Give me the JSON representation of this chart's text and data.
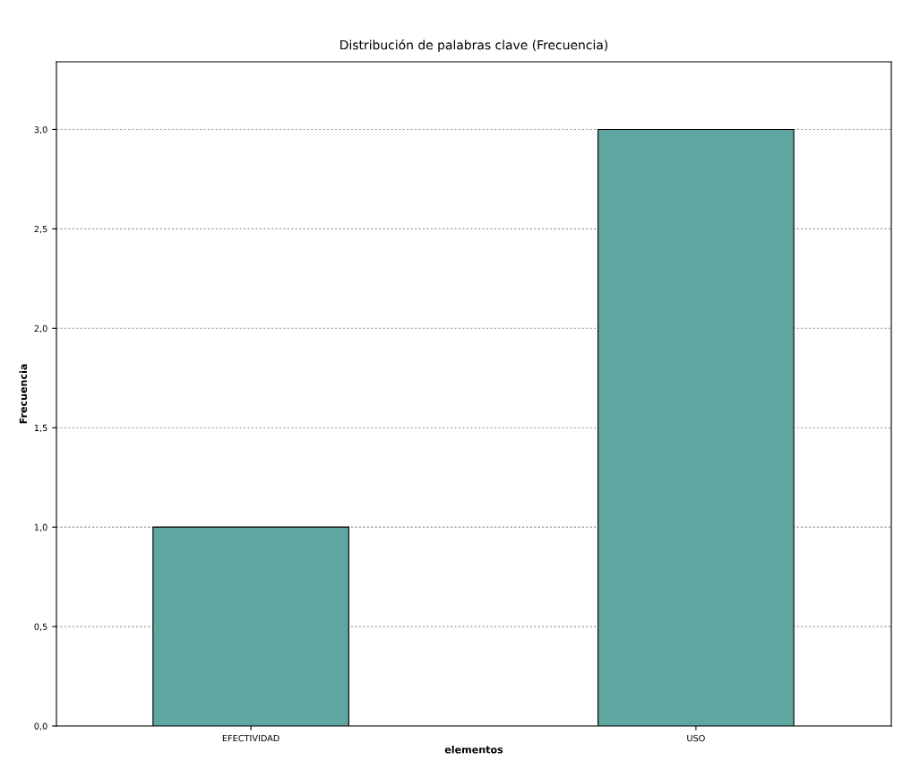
{
  "chart_data": {
    "type": "bar",
    "title": "Distribución de palabras clave (Frecuencia)",
    "xlabel": "elementos",
    "ylabel": "Frecuencia",
    "categories": [
      "EFECTIVIDAD",
      "USO"
    ],
    "values": [
      1,
      3
    ],
    "color": "#5fa5a0",
    "ylim": [
      0,
      3.34
    ],
    "yticks": [
      {
        "value": 0,
        "label": "0,0"
      },
      {
        "value": 0.5,
        "label": "0,5"
      },
      {
        "value": 1,
        "label": "1,0"
      },
      {
        "value": 1.5,
        "label": "1,5"
      },
      {
        "value": 2,
        "label": "2,0"
      },
      {
        "value": 2.5,
        "label": "2,5"
      },
      {
        "value": 3,
        "label": "3,0"
      }
    ],
    "grid": "y",
    "legend": false
  }
}
